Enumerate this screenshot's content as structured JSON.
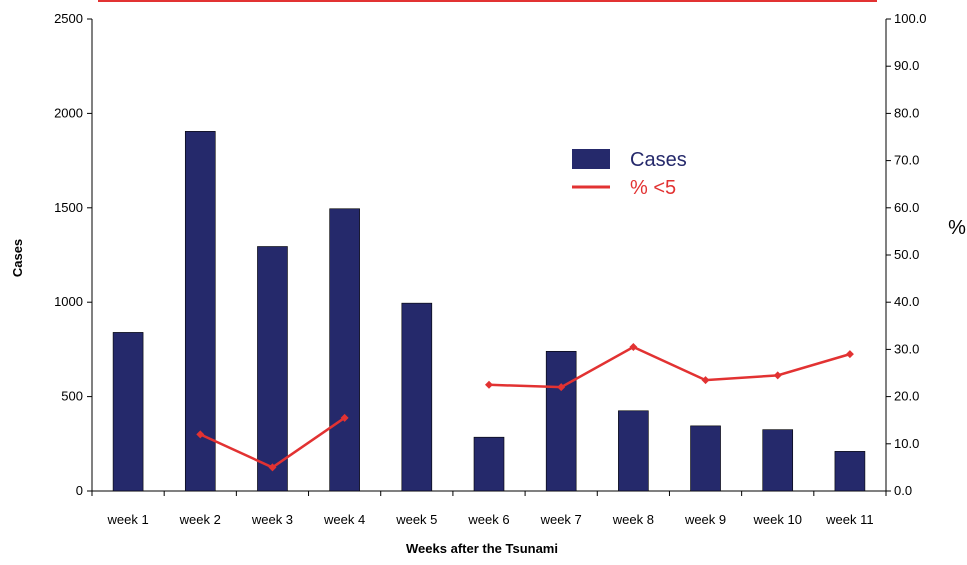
{
  "chart_data": {
    "type": "bar",
    "title": "",
    "xlabel": "Weeks after the Tsunami",
    "ylabel": "Cases",
    "y2label": "%",
    "categories": [
      "week 1",
      "week 2",
      "week 3",
      "week 4",
      "week 5",
      "week 6",
      "week 7",
      "week 8",
      "week 9",
      "week 10",
      "week 11"
    ],
    "ylim": [
      0,
      2500
    ],
    "y2lim": [
      0,
      100
    ],
    "y_ticks": [
      "0",
      "500",
      "1000",
      "1500",
      "2000",
      "2500"
    ],
    "y2_ticks": [
      "0.0",
      "10.0",
      "20.0",
      "30.0",
      "40.0",
      "50.0",
      "60.0",
      "70.0",
      "80.0",
      "90.0",
      "100.0"
    ],
    "series": [
      {
        "name": "Cases",
        "type": "bar",
        "axis": "left",
        "color": "#25296b",
        "values": [
          840,
          1905,
          1295,
          1495,
          995,
          285,
          740,
          425,
          345,
          325,
          210
        ]
      },
      {
        "name": "% <5",
        "type": "line",
        "axis": "right",
        "color": "#e23232",
        "values": [
          null,
          12.0,
          5.0,
          15.5,
          null,
          22.5,
          22.0,
          30.5,
          23.5,
          24.5,
          29.0
        ]
      }
    ],
    "legend": "upper-center",
    "grid": false
  }
}
